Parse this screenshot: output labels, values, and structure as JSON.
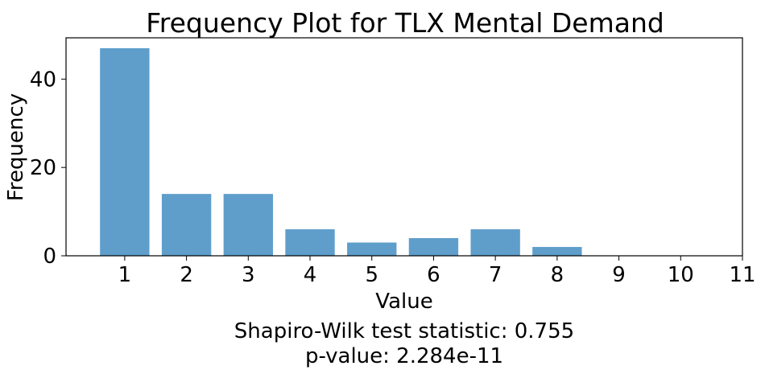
{
  "chart_data": {
    "type": "bar",
    "title": "Frequency Plot for TLX Mental Demand",
    "xlabel": "Value",
    "ylabel": "Frequency",
    "categories": [
      1,
      2,
      3,
      4,
      5,
      6,
      7,
      8,
      9,
      10,
      11
    ],
    "values": [
      47,
      14,
      14,
      6,
      3,
      4,
      6,
      2,
      0,
      0,
      0
    ],
    "xlim": [
      0.05,
      11
    ],
    "ylim": [
      0,
      49.35
    ],
    "xticks": [
      1,
      2,
      3,
      4,
      5,
      6,
      7,
      8,
      9,
      10,
      11
    ],
    "yticks": [
      0,
      20,
      40
    ],
    "bar_color": "#5f9ecb",
    "grid": false
  },
  "annotations": {
    "stat_line": "Shapiro-Wilk test statistic: 0.755",
    "pvalue_line": "p-value: 2.284e-11"
  }
}
